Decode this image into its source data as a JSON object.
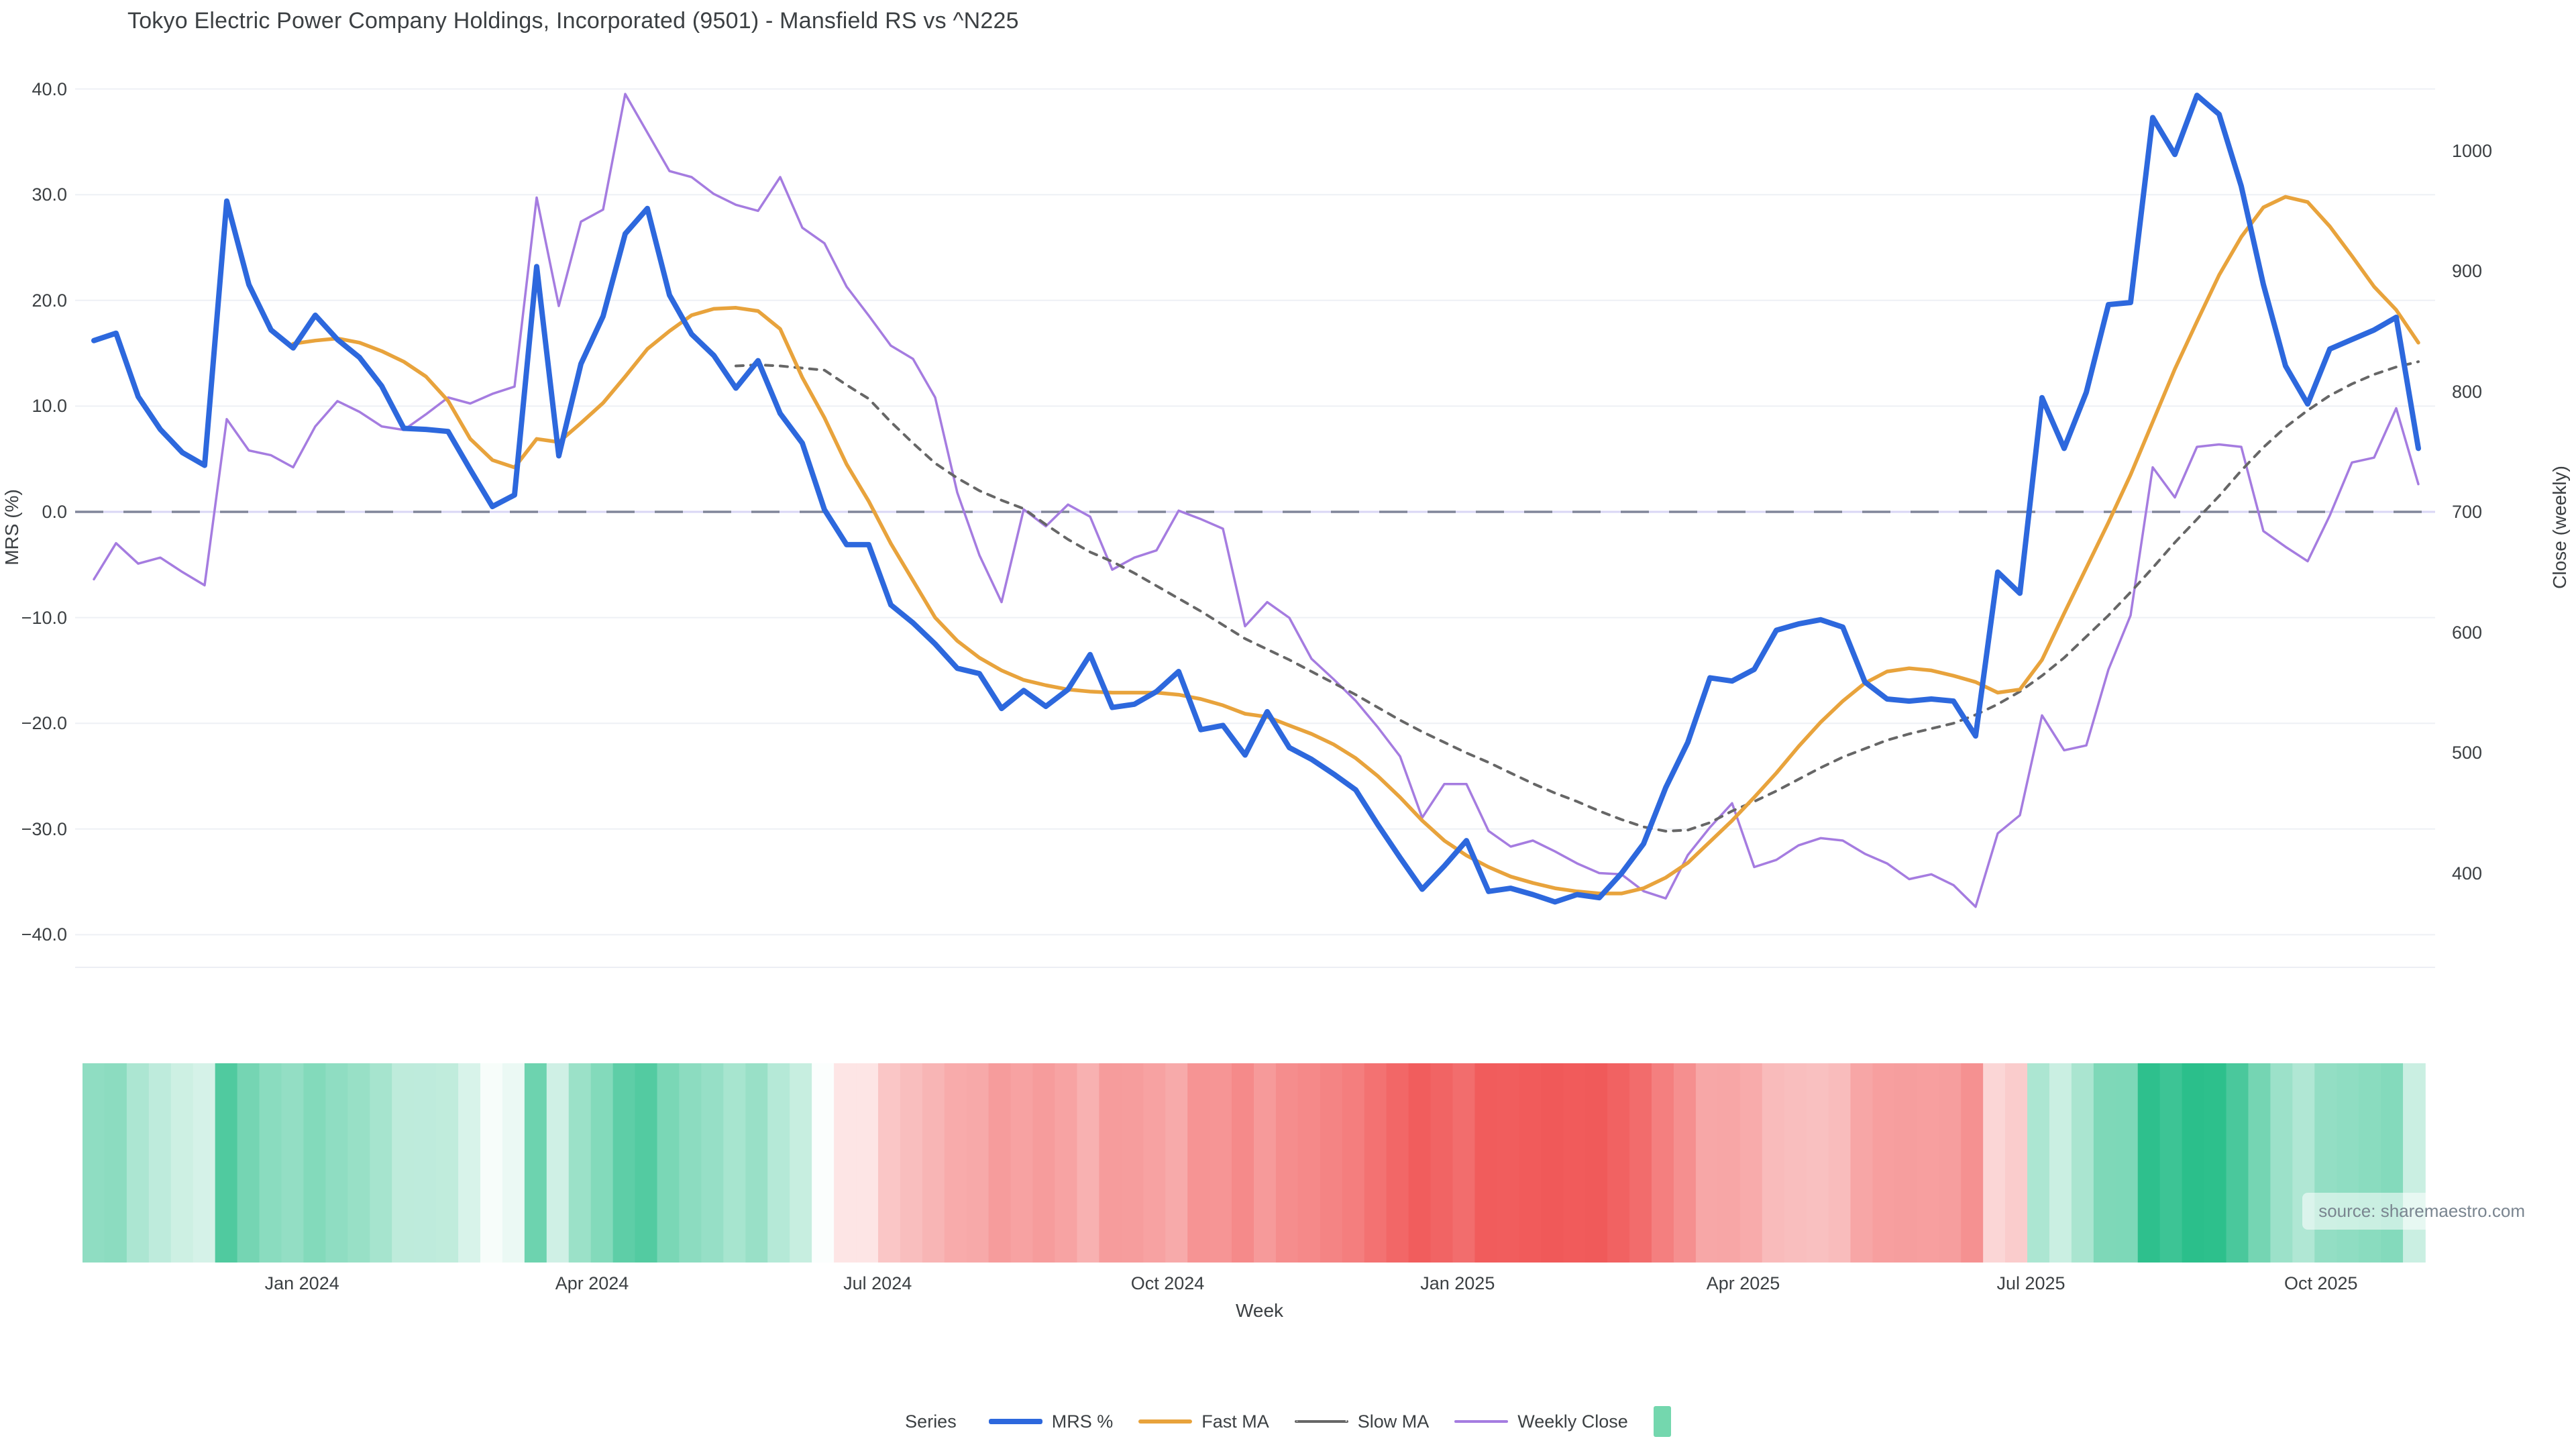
{
  "title": "Tokyo Electric Power Company Holdings, Incorporated (9501) - Mansfield RS vs ^N225",
  "source": "source: sharemaestro.com",
  "axes": {
    "left": {
      "title": "MRS (%)",
      "tick_values": [
        40,
        30,
        20,
        10,
        0,
        -10,
        -20,
        -30,
        -40
      ],
      "tick_labels": [
        "40.0",
        "30.0",
        "20.0",
        "10.0",
        "0.0",
        "−10.0",
        "−20.0",
        "−30.0",
        "−40.0"
      ]
    },
    "right": {
      "title": "Close (weekly)",
      "tick_values": [
        1000,
        900,
        800,
        700,
        600,
        500,
        400
      ],
      "tick_labels": [
        "1000",
        "900",
        "800",
        "700",
        "600",
        "500",
        "400"
      ]
    },
    "x": {
      "title": "Week",
      "tick_weeks": [
        9.4,
        22.5,
        35.4,
        48.5,
        61.6,
        74.5,
        87.5,
        100.6
      ],
      "tick_labels": [
        "Jan 2024",
        "Apr 2024",
        "Jul 2024",
        "Oct 2024",
        "Jan 2025",
        "Apr 2025",
        "Jul 2025",
        "Oct 2025"
      ]
    }
  },
  "legend": {
    "label": "Series",
    "items": [
      {
        "label": "MRS %",
        "color": "#2d68dd",
        "style": "solid",
        "thickness": 8
      },
      {
        "label": "Fast MA",
        "color": "#e8a33c",
        "style": "solid",
        "thickness": 6
      },
      {
        "label": "Slow MA",
        "color": "#666666",
        "style": "dotted",
        "thickness": 4
      },
      {
        "label": "Weekly Close",
        "color": "#a57ce0",
        "style": "solid",
        "thickness": 4
      },
      {
        "label": "",
        "color": "#74d7ae",
        "style": "swatch"
      }
    ]
  },
  "chart_data": {
    "type": "line",
    "title": "Tokyo Electric Power Company Holdings, Incorporated (9501) - Mansfield RS vs ^N225",
    "xlabel": "Week",
    "x_unit": "weekly, Nov 2023 - Nov 2025",
    "n_points": 106,
    "y_left_label": "MRS (%)",
    "y_left_range": [
      -43,
      43
    ],
    "y_right_label": "Close (weekly)",
    "grid": true,
    "zero_line": true,
    "legend_position": "bottom",
    "series": [
      {
        "name": "MRS %",
        "axis": "left",
        "color": "#2d68dd",
        "style": "solid",
        "values": [
          16.2,
          16.9,
          10.9,
          7.8,
          5.6,
          4.4,
          29.4,
          21.5,
          17.2,
          15.5,
          18.6,
          16.3,
          14.6,
          11.9,
          7.9,
          7.8,
          7.6,
          4.0,
          0.5,
          1.6,
          23.2,
          5.3,
          14.0,
          18.5,
          26.3,
          28.7,
          20.5,
          16.8,
          14.8,
          11.7,
          14.3,
          9.3,
          6.5,
          0.2,
          -3.1,
          -3.1,
          -8.8,
          -10.5,
          -12.5,
          -14.8,
          -15.3,
          -18.6,
          -16.9,
          -18.4,
          -16.8,
          -13.5,
          -18.5,
          -18.2,
          -17.0,
          -15.1,
          -20.6,
          -20.2,
          -23.0,
          -18.9,
          -22.3,
          -23.4,
          -24.8,
          -26.3,
          -29.6,
          -32.7,
          -35.7,
          -33.5,
          -31.1,
          -35.9,
          -35.6,
          -36.2,
          -36.9,
          -36.2,
          -36.5,
          -34.2,
          -31.4,
          -26.1,
          -21.8,
          -15.7,
          -16.0,
          -14.9,
          -11.2,
          -10.6,
          -10.2,
          -10.9,
          -16.1,
          -17.7,
          -17.9,
          -17.7,
          -17.9,
          -21.2,
          -5.7,
          -7.7,
          10.8,
          6.0,
          11.3,
          19.6,
          19.8,
          37.3,
          33.8,
          39.4,
          37.6,
          30.8,
          21.5,
          13.8,
          10.2,
          15.4,
          16.3,
          17.2,
          18.4,
          6.0
        ]
      },
      {
        "name": "Fast MA",
        "axis": "left",
        "color": "#e8a33c",
        "style": "solid",
        "values": [
          null,
          null,
          null,
          null,
          null,
          null,
          null,
          null,
          null,
          15.9,
          16.2,
          16.4,
          16.0,
          15.2,
          14.2,
          12.8,
          10.5,
          6.9,
          4.9,
          4.2,
          6.9,
          6.6,
          8.4,
          10.3,
          12.8,
          15.4,
          17.1,
          18.6,
          19.2,
          19.3,
          19.0,
          17.3,
          12.7,
          8.9,
          4.5,
          1.0,
          -3.0,
          -6.5,
          -10.0,
          -12.2,
          -13.8,
          -15.0,
          -15.9,
          -16.4,
          -16.8,
          -17.0,
          -17.1,
          -17.1,
          -17.1,
          -17.3,
          -17.7,
          -18.3,
          -19.1,
          -19.4,
          -20.2,
          -21.0,
          -22.0,
          -23.3,
          -25.0,
          -27.0,
          -29.2,
          -31.1,
          -32.5,
          -33.6,
          -34.5,
          -35.1,
          -35.6,
          -35.9,
          -36.1,
          -36.1,
          -35.6,
          -34.6,
          -33.2,
          -31.2,
          -29.2,
          -27.0,
          -24.7,
          -22.2,
          -19.9,
          -17.9,
          -16.2,
          -15.1,
          -14.8,
          -15.0,
          -15.5,
          -16.1,
          -17.1,
          -16.8,
          -14.0,
          -9.6,
          -5.3,
          -1.0,
          3.5,
          8.5,
          13.5,
          18.0,
          22.4,
          26.0,
          28.8,
          29.8,
          29.3,
          27.0,
          24.2,
          21.3,
          19.1,
          16.0
        ]
      },
      {
        "name": "Slow MA",
        "axis": "left",
        "color": "#666666",
        "style": "dotted",
        "values": [
          null,
          null,
          null,
          null,
          null,
          null,
          null,
          null,
          null,
          null,
          null,
          null,
          null,
          null,
          null,
          null,
          null,
          null,
          null,
          null,
          null,
          null,
          null,
          null,
          null,
          null,
          null,
          null,
          null,
          13.8,
          13.9,
          13.8,
          13.6,
          13.4,
          12.0,
          10.7,
          8.5,
          6.5,
          4.6,
          3.2,
          2.0,
          1.1,
          0.3,
          -1.2,
          -2.6,
          -3.8,
          -4.7,
          -5.8,
          -7.0,
          -8.2,
          -9.4,
          -10.7,
          -12.0,
          -13.0,
          -14.0,
          -15.1,
          -16.2,
          -17.3,
          -18.5,
          -19.7,
          -20.8,
          -21.8,
          -22.8,
          -23.7,
          -24.7,
          -25.7,
          -26.6,
          -27.4,
          -28.3,
          -29.1,
          -29.8,
          -30.2,
          -30.1,
          -29.4,
          -28.3,
          -27.4,
          -26.4,
          -25.3,
          -24.2,
          -23.2,
          -22.4,
          -21.6,
          -21.0,
          -20.5,
          -20.0,
          -19.2,
          -18.2,
          -17.0,
          -15.5,
          -13.8,
          -11.8,
          -9.8,
          -7.6,
          -5.3,
          -2.9,
          -0.7,
          1.5,
          3.9,
          6.1,
          8.0,
          9.6,
          11.0,
          12.1,
          13.0,
          13.7,
          14.2
        ]
      },
      {
        "name": "Weekly Close",
        "axis": "right",
        "color": "#a57ce0",
        "style": "solid",
        "values": [
          644,
          674,
          657,
          662,
          650,
          639,
          777,
          751,
          747,
          737,
          771,
          792,
          783,
          771,
          768,
          781,
          795,
          790,
          798,
          804,
          961,
          871,
          941,
          951,
          1047,
          1015,
          983,
          978,
          964,
          955,
          950,
          978,
          936,
          923,
          887,
          863,
          838,
          827,
          795,
          716,
          664,
          625,
          702,
          688,
          706,
          696,
          652,
          662,
          668,
          701,
          694,
          686,
          605,
          625,
          612,
          578,
          561,
          543,
          521,
          497,
          446,
          474,
          474,
          435,
          422,
          427,
          418,
          408,
          400,
          399,
          385,
          379,
          415,
          438,
          458,
          405,
          411,
          423,
          429,
          427,
          416,
          408,
          395,
          399,
          390,
          372,
          433,
          448,
          531,
          502,
          506,
          569,
          614,
          737,
          712,
          754,
          756,
          754,
          684,
          671,
          659,
          697,
          741,
          745,
          786,
          723
        ]
      }
    ],
    "heatmap": {
      "maps": "MRS %",
      "positive_color": "#2bbf8b",
      "negative_color": "#f05555",
      "neutral_color": "#ffffff"
    }
  }
}
